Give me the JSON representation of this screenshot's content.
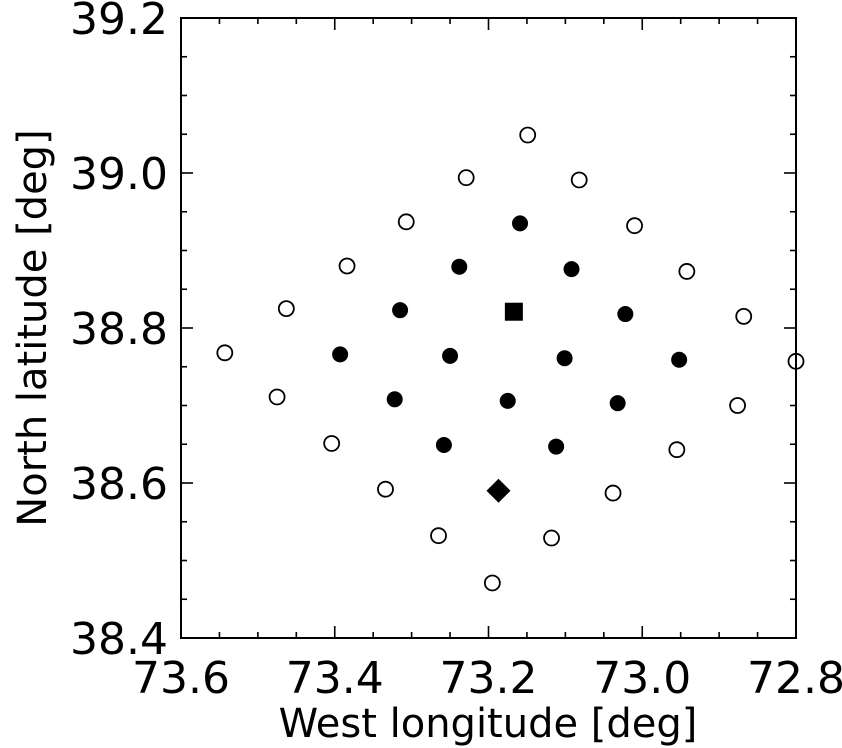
{
  "chart_data": {
    "type": "scatter",
    "title": "",
    "xlabel": "West longitude [deg]",
    "ylabel": "North latitude [deg]",
    "xlim": [
      73.6,
      72.8
    ],
    "ylim": [
      38.4,
      39.2
    ],
    "x_reversed": true,
    "grid": false,
    "x_ticks": [
      73.6,
      73.4,
      73.2,
      73.0,
      72.8
    ],
    "x_tick_labels": [
      "73.6",
      "73.4",
      "73.2",
      "73.0",
      "72.8"
    ],
    "y_ticks": [
      38.4,
      38.6,
      38.8,
      39.0,
      39.2
    ],
    "y_tick_labels": [
      "38.4",
      "38.6",
      "38.8",
      "39.0",
      "39.2"
    ],
    "series": [
      {
        "marker": "open-circle",
        "color": "#000000",
        "points": [
          {
            "x": 73.149,
            "y": 39.049
          },
          {
            "x": 73.229,
            "y": 38.994
          },
          {
            "x": 73.082,
            "y": 38.991
          },
          {
            "x": 73.307,
            "y": 38.937
          },
          {
            "x": 73.01,
            "y": 38.932
          },
          {
            "x": 73.384,
            "y": 38.88
          },
          {
            "x": 72.942,
            "y": 38.873
          },
          {
            "x": 73.463,
            "y": 38.825
          },
          {
            "x": 72.868,
            "y": 38.815
          },
          {
            "x": 73.543,
            "y": 38.768
          },
          {
            "x": 72.8,
            "y": 38.757
          },
          {
            "x": 73.475,
            "y": 38.711
          },
          {
            "x": 72.876,
            "y": 38.7
          },
          {
            "x": 73.404,
            "y": 38.651
          },
          {
            "x": 72.955,
            "y": 38.643
          },
          {
            "x": 73.334,
            "y": 38.592
          },
          {
            "x": 73.038,
            "y": 38.587
          },
          {
            "x": 73.265,
            "y": 38.532
          },
          {
            "x": 73.118,
            "y": 38.529
          },
          {
            "x": 73.195,
            "y": 38.471
          }
        ]
      },
      {
        "marker": "filled-circle",
        "color": "#000000",
        "points": [
          {
            "x": 73.159,
            "y": 38.935
          },
          {
            "x": 73.238,
            "y": 38.879
          },
          {
            "x": 73.092,
            "y": 38.876
          },
          {
            "x": 73.315,
            "y": 38.823
          },
          {
            "x": 73.022,
            "y": 38.818
          },
          {
            "x": 73.393,
            "y": 38.766
          },
          {
            "x": 73.25,
            "y": 38.764
          },
          {
            "x": 73.101,
            "y": 38.761
          },
          {
            "x": 72.952,
            "y": 38.759
          },
          {
            "x": 73.322,
            "y": 38.708
          },
          {
            "x": 73.175,
            "y": 38.706
          },
          {
            "x": 73.032,
            "y": 38.703
          },
          {
            "x": 73.258,
            "y": 38.649
          },
          {
            "x": 73.112,
            "y": 38.647
          }
        ]
      },
      {
        "marker": "filled-square",
        "color": "#000000",
        "points": [
          {
            "x": 73.167,
            "y": 38.821
          }
        ]
      },
      {
        "marker": "filled-diamond",
        "color": "#000000",
        "points": [
          {
            "x": 73.187,
            "y": 38.59
          }
        ]
      }
    ]
  }
}
